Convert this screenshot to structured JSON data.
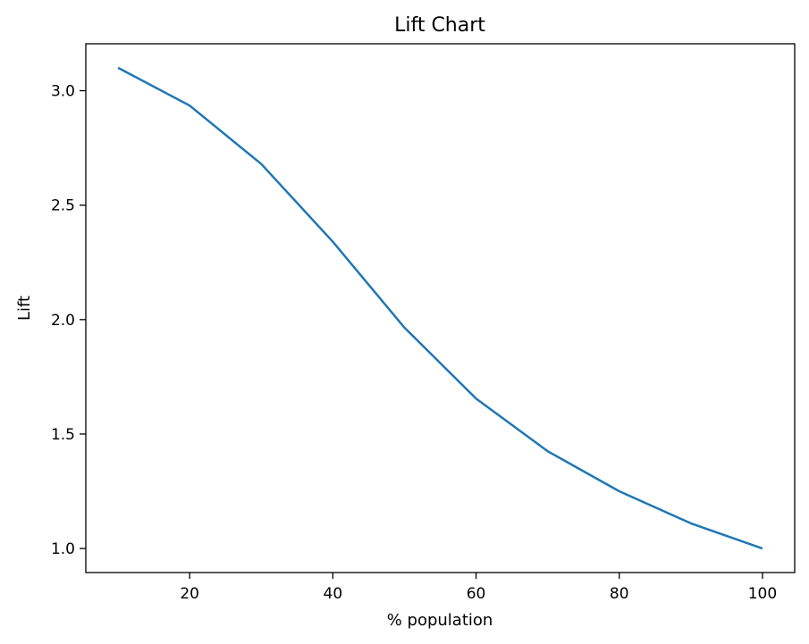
{
  "chart_data": {
    "type": "line",
    "title": "Lift Chart",
    "xlabel": "% population",
    "ylabel": "Lift",
    "x": [
      10,
      20,
      30,
      40,
      50,
      60,
      70,
      80,
      90,
      100
    ],
    "series": [
      {
        "values": [
          3.1,
          2.935,
          2.68,
          2.34,
          1.965,
          1.655,
          1.425,
          1.25,
          1.11,
          1.0
        ],
        "color": "#1f77b4"
      }
    ],
    "xlim": [
      5.5,
      104.5
    ],
    "ylim": [
      0.895,
      3.205
    ],
    "xticks": [
      20,
      40,
      60,
      80,
      100
    ],
    "yticks": [
      1.0,
      1.5,
      2.0,
      2.5,
      3.0
    ],
    "xtick_labels": [
      "20",
      "40",
      "60",
      "80",
      "100"
    ],
    "ytick_labels": [
      "1.0",
      "1.5",
      "2.0",
      "2.5",
      "3.0"
    ],
    "grid": false,
    "legend": false
  }
}
